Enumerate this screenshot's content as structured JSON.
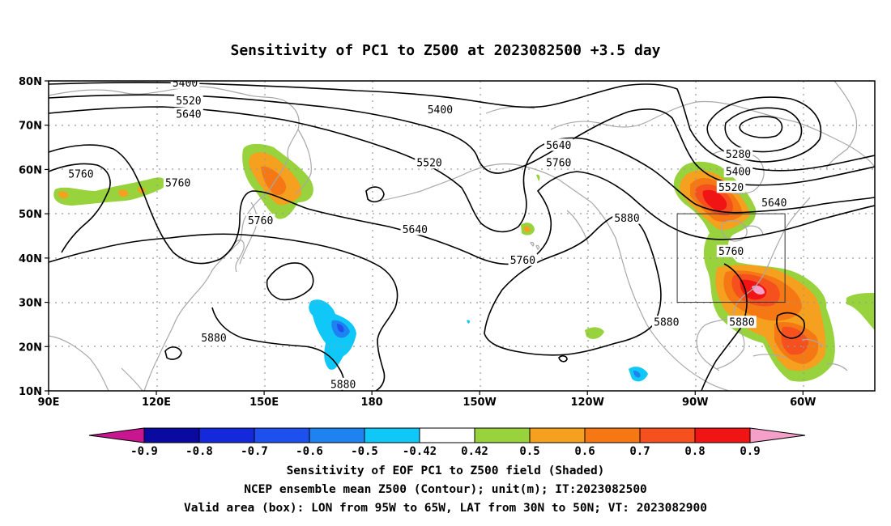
{
  "title": "Sensitivity of PC1 to Z500 at 2023082500 +3.5 day",
  "map": {
    "lon_range": [
      90,
      320
    ],
    "lat_range": [
      10,
      80
    ],
    "lon_ticks": [
      {
        "value": 90,
        "label": "90E"
      },
      {
        "value": 120,
        "label": "120E"
      },
      {
        "value": 150,
        "label": "150E"
      },
      {
        "value": 180,
        "label": "180"
      },
      {
        "value": 210,
        "label": "150W"
      },
      {
        "value": 240,
        "label": "120W"
      },
      {
        "value": 270,
        "label": "90W"
      },
      {
        "value": 300,
        "label": "60W"
      }
    ],
    "lat_ticks": [
      {
        "value": 10,
        "label": "10N"
      },
      {
        "value": 20,
        "label": "20N"
      },
      {
        "value": 30,
        "label": "30N"
      },
      {
        "value": 40,
        "label": "40N"
      },
      {
        "value": 50,
        "label": "50N"
      },
      {
        "value": 60,
        "label": "60N"
      },
      {
        "value": 70,
        "label": "70N"
      },
      {
        "value": 80,
        "label": "80N"
      }
    ],
    "valid_box": {
      "lon": [
        265,
        295
      ],
      "lat": [
        30,
        50
      ]
    },
    "contour_labels": [
      {
        "text": "5400",
        "lon": 128,
        "lat": 79.5
      },
      {
        "text": "5520",
        "lon": 129,
        "lat": 75.5
      },
      {
        "text": "5640",
        "lon": 129,
        "lat": 72.5
      },
      {
        "text": "5400",
        "lon": 199,
        "lat": 73.5
      },
      {
        "text": "5760",
        "lon": 99,
        "lat": 59
      },
      {
        "text": "5760",
        "lon": 126,
        "lat": 57
      },
      {
        "text": "5520",
        "lon": 196,
        "lat": 61.5
      },
      {
        "text": "5640",
        "lon": 232,
        "lat": 65.5
      },
      {
        "text": "5760",
        "lon": 232,
        "lat": 61.5
      },
      {
        "text": "5280",
        "lon": 282,
        "lat": 63.5
      },
      {
        "text": "5400",
        "lon": 282,
        "lat": 59.5
      },
      {
        "text": "5520",
        "lon": 280,
        "lat": 56
      },
      {
        "text": "5640",
        "lon": 292,
        "lat": 52.5
      },
      {
        "text": "5760",
        "lon": 149,
        "lat": 48.5
      },
      {
        "text": "5640",
        "lon": 192,
        "lat": 46.5
      },
      {
        "text": "5880",
        "lon": 251,
        "lat": 49
      },
      {
        "text": "5760",
        "lon": 222,
        "lat": 39.5
      },
      {
        "text": "5760",
        "lon": 280,
        "lat": 41.5
      },
      {
        "text": "5880",
        "lon": 136,
        "lat": 22
      },
      {
        "text": "5880",
        "lon": 262,
        "lat": 25.5
      },
      {
        "text": "5880",
        "lon": 283,
        "lat": 25.5
      },
      {
        "text": "5880",
        "lon": 172,
        "lat": 11.5
      }
    ]
  },
  "colorbar": {
    "labels": [
      "-0.9",
      "-0.8",
      "-0.7",
      "-0.6",
      "-0.5",
      "-0.42",
      "0.42",
      "0.5",
      "0.6",
      "0.7",
      "0.8",
      "0.9"
    ],
    "colors": {
      "lt_neg09": "#c8168f",
      "neg09_neg08": "#0a0aa0",
      "neg08_neg07": "#1428dc",
      "neg07_neg06": "#1e50f0",
      "neg06_neg05": "#1e82f0",
      "neg05_neg042": "#10c8f8",
      "neg042_042": "#ffffff",
      "p042_p05": "#98d23c",
      "p05_p06": "#f5a01e",
      "p06_p07": "#f57814",
      "p07_p08": "#f5501e",
      "p08_p09": "#f01414",
      "gt_09": "#f5a0c8"
    }
  },
  "footer": {
    "line1": "Sensitivity of EOF PC1 to Z500 field (Shaded)",
    "line2": "NCEP ensemble mean Z500 (Contour); unit(m); IT:2023082500",
    "line3": "Valid area (box): LON from 95W to 65W, LAT from 30N to 50N; VT: 2023082900"
  }
}
